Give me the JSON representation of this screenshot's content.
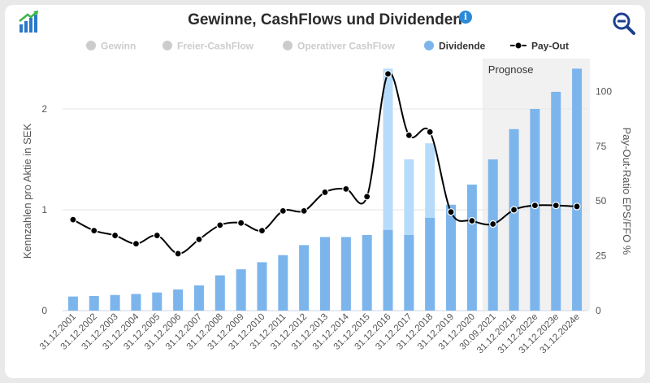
{
  "chart_data": {
    "type": "bar",
    "title": "Gewinne, CashFlows und Dividenden",
    "ylabel": "Kennzahlen pro Aktie in SEK",
    "y2label": "Pay-Out-Ratio EPS/FFO %",
    "ylim": [
      0,
      2.5
    ],
    "y2lim": [
      0,
      115
    ],
    "yticks": [
      0,
      1,
      2
    ],
    "y2ticks": [
      0,
      25,
      50,
      75,
      100
    ],
    "legend_placement": "top",
    "grid": "horizontal",
    "categories": [
      "31.12.2001",
      "31.12.2002",
      "31.12.2003",
      "31.12.2004",
      "31.12.2005",
      "31.12.2006",
      "31.12.2007",
      "31.12.2008",
      "31.12.2009",
      "31.12.2010",
      "31.12.2011",
      "31.12.2012",
      "31.12.2013",
      "31.12.2014",
      "31.12.2015",
      "31.12.2016",
      "31.12.2017",
      "31.12.2018",
      "31.12.2019",
      "31.12.2020",
      "30.09.2021",
      "31.12.2021e",
      "31.12.2022e",
      "31.12.2023e",
      "31.12.2024e"
    ],
    "series": [
      {
        "name": "Gewinn",
        "enabled": false,
        "legend_color": "#cccccc"
      },
      {
        "name": "Freier-CashFlow",
        "enabled": false,
        "legend_color": "#cccccc"
      },
      {
        "name": "Operativer CashFlow",
        "enabled": false,
        "legend_color": "#cccccc"
      },
      {
        "name": "Dividende",
        "enabled": true,
        "legend_color": "#7cb5ec",
        "color": "#7cb5ec",
        "values": [
          0.14,
          0.145,
          0.155,
          0.165,
          0.18,
          0.21,
          0.25,
          0.35,
          0.41,
          0.48,
          0.55,
          0.65,
          0.73,
          0.73,
          0.75,
          0.8,
          0.75,
          0.92,
          1.05,
          1.25,
          1.5,
          1.8,
          2.0,
          2.17,
          2.4
        ]
      },
      {
        "name": "Pay-Out",
        "enabled": true,
        "type": "line",
        "axis": "right",
        "color": "#000000",
        "values": [
          41.5,
          36.5,
          34.3,
          30.5,
          34.3,
          26,
          32.5,
          39,
          40,
          36.5,
          45.5,
          45.5,
          54,
          55.5,
          52,
          108,
          80,
          81.5,
          45,
          41,
          39.5,
          46,
          48,
          48,
          47.5
        ]
      }
    ],
    "overlay_bars": {
      "color": "#b7dcfb",
      "categories": [
        "31.12.2016",
        "31.12.2017",
        "31.12.2018"
      ],
      "values": [
        2.4,
        1.5,
        1.66
      ]
    },
    "forecast": {
      "label": "Prognose",
      "start_category": "30.09.2021",
      "end_category": "31.12.2024e"
    }
  },
  "icons": {
    "logo": "rising-bar-chart-logo-icon",
    "info": "info-icon",
    "zoom": "zoom-out-magnifier-icon",
    "info_glyph": "i"
  },
  "colors": {
    "accent": "#2a8ad8",
    "bar": "#7cb5ec",
    "bar_light": "#b7dcfb",
    "forecast_bg": "#f1f1f1",
    "logo_green": "#3cb44b",
    "logo_blue": "#2a78c8"
  }
}
